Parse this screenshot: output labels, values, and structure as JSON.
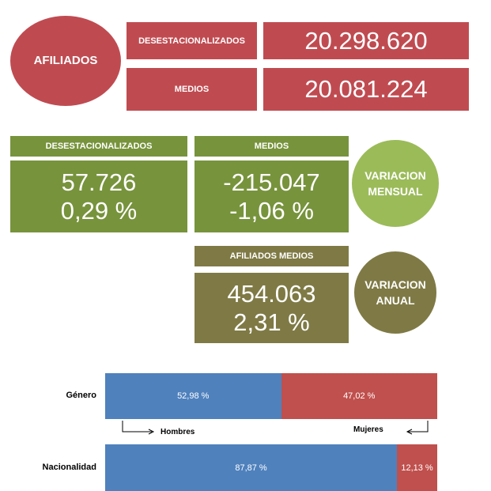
{
  "afiliados": {
    "label": "AFILIADOS",
    "color": "#bf4b51",
    "rows": [
      {
        "label": "DESESTACIONALIZADOS",
        "value": "20.298.620"
      },
      {
        "label": "MEDIOS",
        "value": "20.081.224"
      }
    ]
  },
  "variacion_mensual": {
    "label": "VARIACION MENSUAL",
    "color": "#77933c",
    "circle_color": "#9bbb59",
    "columns": [
      {
        "label": "DESESTACIONALIZADOS",
        "absolute": "57.726",
        "percent": "0,29 %"
      },
      {
        "label": "MEDIOS",
        "absolute": "-215.047",
        "percent": "-1,06 %"
      }
    ]
  },
  "variacion_anual": {
    "label": "VARIACION ANUAL",
    "color": "#7f7a45",
    "columns": [
      {
        "label": "AFILIADOS MEDIOS",
        "absolute": "454.063",
        "percent": "2,31 %"
      }
    ]
  },
  "distribution": {
    "colors": [
      "#4f81bd",
      "#c0504d"
    ],
    "rows": [
      {
        "label": "Género",
        "values": [
          52.98,
          47.02
        ],
        "value_labels": [
          "52,98 %",
          "47,02 %"
        ],
        "series_labels": [
          "Hombres",
          "Mujeres"
        ]
      },
      {
        "label": "Nacionalidad",
        "values": [
          87.87,
          12.13
        ],
        "value_labels": [
          "87,87 %",
          "12,13 %"
        ]
      }
    ]
  }
}
